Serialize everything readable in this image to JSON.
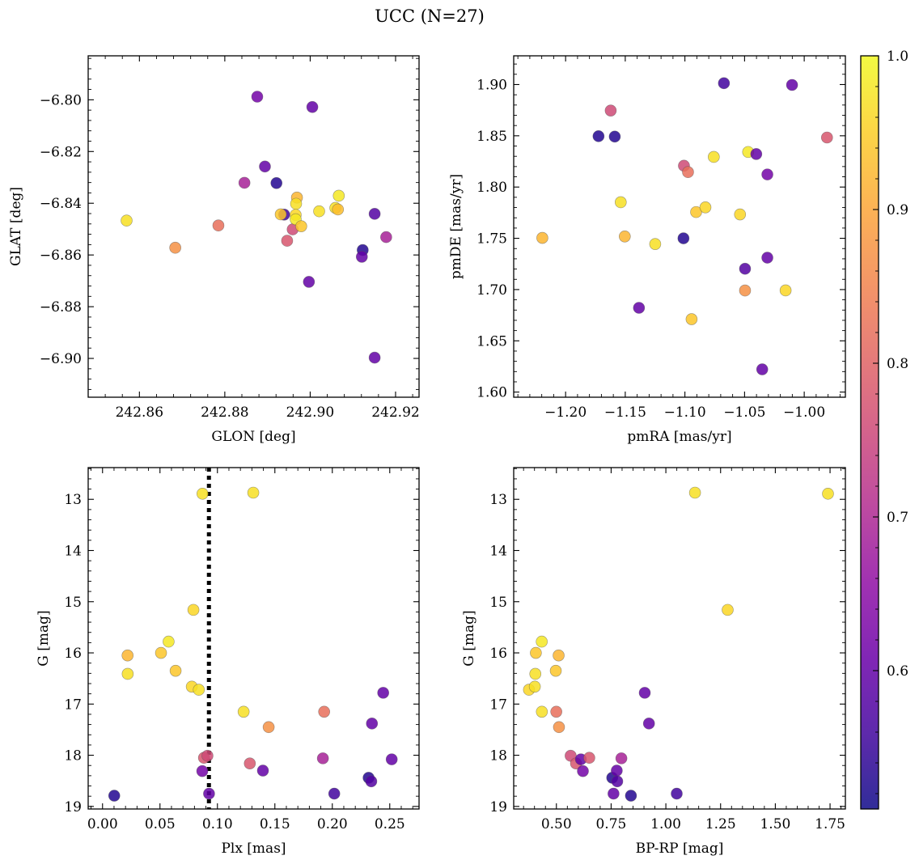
{
  "figure": {
    "title": "UCC (N=27)",
    "colormap": "plasma",
    "colorbar": {
      "range": [
        0.51,
        1.0
      ],
      "ticks": [
        "0.6",
        "0.7",
        "0.8",
        "0.9",
        "1.0"
      ],
      "tick_values": [
        0.6,
        0.7,
        0.8,
        0.9,
        1.0
      ]
    }
  },
  "chart_data": [
    {
      "type": "scatter",
      "xlabel": "GLON [deg]",
      "ylabel": "GLAT [deg]",
      "xlim": [
        242.848,
        242.9255
      ],
      "ylim": [
        -6.915,
        -6.783
      ],
      "xticks": [
        242.86,
        242.88,
        242.9,
        242.92
      ],
      "xtick_labels": [
        "242.86",
        "242.88",
        "242.90",
        "242.92"
      ],
      "yticks": [
        -6.8,
        -6.82,
        -6.84,
        -6.86,
        -6.88,
        -6.9
      ],
      "ytick_labels": [
        "−6.80",
        "−6.82",
        "−6.84",
        "−6.86",
        "−6.88",
        "−6.90"
      ],
      "points": [
        {
          "x": 242.857,
          "y": -6.8467,
          "c": 0.97
        },
        {
          "x": 242.8684,
          "y": -6.8572,
          "c": 0.87
        },
        {
          "x": 242.8785,
          "y": -6.8486,
          "c": 0.82
        },
        {
          "x": 242.8876,
          "y": -6.7988,
          "c": 0.62
        },
        {
          "x": 242.8846,
          "y": -6.8321,
          "c": 0.69
        },
        {
          "x": 242.8894,
          "y": -6.8258,
          "c": 0.6
        },
        {
          "x": 242.8921,
          "y": -6.8322,
          "c": 0.53
        },
        {
          "x": 242.8939,
          "y": -6.8444,
          "c": 0.56
        },
        {
          "x": 242.8931,
          "y": -6.8443,
          "c": 0.94
        },
        {
          "x": 242.8946,
          "y": -6.8545,
          "c": 0.78
        },
        {
          "x": 242.8959,
          "y": -6.8501,
          "c": 0.76
        },
        {
          "x": 242.8969,
          "y": -6.8378,
          "c": 0.92
        },
        {
          "x": 242.8967,
          "y": -6.8402,
          "c": 0.97
        },
        {
          "x": 242.8966,
          "y": -6.8445,
          "c": 0.96
        },
        {
          "x": 242.8966,
          "y": -6.8462,
          "c": 0.98
        },
        {
          "x": 242.8979,
          "y": -6.8489,
          "c": 0.94
        },
        {
          "x": 242.8997,
          "y": -6.8704,
          "c": 0.6
        },
        {
          "x": 242.9005,
          "y": -6.8028,
          "c": 0.6
        },
        {
          "x": 242.9021,
          "y": -6.8431,
          "c": 0.97
        },
        {
          "x": 242.9059,
          "y": -6.8418,
          "c": 0.97
        },
        {
          "x": 242.9065,
          "y": -6.8424,
          "c": 0.93
        },
        {
          "x": 242.9067,
          "y": -6.8371,
          "c": 0.98
        },
        {
          "x": 242.9123,
          "y": -6.8581,
          "c": 0.53
        },
        {
          "x": 242.9121,
          "y": -6.8607,
          "c": 0.6
        },
        {
          "x": 242.9151,
          "y": -6.8441,
          "c": 0.58
        },
        {
          "x": 242.9151,
          "y": -6.8997,
          "c": 0.6
        },
        {
          "x": 242.9178,
          "y": -6.8531,
          "c": 0.69
        }
      ]
    },
    {
      "type": "scatter",
      "xlabel": "pmRA [mas/yr]",
      "ylabel": "pmDE [mas/yr]",
      "xlim": [
        -1.2435,
        -0.9655
      ],
      "ylim": [
        1.595,
        1.928
      ],
      "xticks": [
        -1.2,
        -1.15,
        -1.1,
        -1.05,
        -1.0
      ],
      "xtick_labels": [
        "−1.20",
        "−1.15",
        "−1.10",
        "−1.05",
        "−1.00"
      ],
      "yticks": [
        1.6,
        1.65,
        1.7,
        1.75,
        1.8,
        1.85,
        1.9
      ],
      "ytick_labels": [
        "1.60",
        "1.65",
        "1.70",
        "1.75",
        "1.80",
        "1.85",
        "1.90"
      ],
      "points": [
        {
          "x": -1.2195,
          "y": 1.7504,
          "c": 0.92
        },
        {
          "x": -1.1724,
          "y": 1.8496,
          "c": 0.53
        },
        {
          "x": -1.1622,
          "y": 1.8746,
          "c": 0.76
        },
        {
          "x": -1.1588,
          "y": 1.8492,
          "c": 0.53
        },
        {
          "x": -1.1538,
          "y": 1.7852,
          "c": 0.97
        },
        {
          "x": -1.1504,
          "y": 1.7518,
          "c": 0.92
        },
        {
          "x": -1.1385,
          "y": 1.6822,
          "c": 0.6
        },
        {
          "x": -1.1249,
          "y": 1.7444,
          "c": 0.97
        },
        {
          "x": -1.1012,
          "y": 1.75,
          "c": 0.53
        },
        {
          "x": -1.1008,
          "y": 1.8208,
          "c": 0.76
        },
        {
          "x": -1.0974,
          "y": 1.8146,
          "c": 0.82
        },
        {
          "x": -1.0944,
          "y": 1.6711,
          "c": 0.94
        },
        {
          "x": -1.0906,
          "y": 1.7756,
          "c": 0.94
        },
        {
          "x": -1.0828,
          "y": 1.7802,
          "c": 0.96
        },
        {
          "x": -1.0758,
          "y": 1.8294,
          "c": 0.97
        },
        {
          "x": -1.0673,
          "y": 1.9013,
          "c": 0.56
        },
        {
          "x": -1.0538,
          "y": 1.7733,
          "c": 0.96
        },
        {
          "x": -1.0496,
          "y": 1.7203,
          "c": 0.58
        },
        {
          "x": -1.0496,
          "y": 1.6991,
          "c": 0.87
        },
        {
          "x": -1.047,
          "y": 1.8342,
          "c": 0.98
        },
        {
          "x": -1.0402,
          "y": 1.8322,
          "c": 0.6
        },
        {
          "x": -1.0352,
          "y": 1.6222,
          "c": 0.6
        },
        {
          "x": -1.0309,
          "y": 1.8123,
          "c": 0.62
        },
        {
          "x": -1.0309,
          "y": 1.7311,
          "c": 0.6
        },
        {
          "x": -1.0156,
          "y": 1.6992,
          "c": 0.96
        },
        {
          "x": -1.0102,
          "y": 1.8996,
          "c": 0.6
        },
        {
          "x": -0.9809,
          "y": 1.8483,
          "c": 0.78
        }
      ]
    },
    {
      "type": "scatter",
      "xlabel": "Plx [mas]",
      "ylabel": "G [mag]",
      "xlim": [
        -0.0125,
        0.2755
      ],
      "ylim": [
        19.05,
        12.38
      ],
      "y_inverted": true,
      "xticks": [
        0.0,
        0.05,
        0.1,
        0.15,
        0.2,
        0.25
      ],
      "xtick_labels": [
        "0.00",
        "0.05",
        "0.10",
        "0.15",
        "0.20",
        "0.25"
      ],
      "yticks": [
        13,
        14,
        15,
        16,
        17,
        18,
        19
      ],
      "ytick_labels": [
        "13",
        "14",
        "15",
        "16",
        "17",
        "18",
        "19"
      ],
      "vline": {
        "x": 0.0926,
        "style": "dotted"
      },
      "points": [
        {
          "x": 0.0102,
          "y": 18.79,
          "c": 0.53
        },
        {
          "x": 0.0218,
          "y": 16.05,
          "c": 0.92
        },
        {
          "x": 0.0219,
          "y": 16.41,
          "c": 0.97
        },
        {
          "x": 0.0509,
          "y": 16.0,
          "c": 0.94
        },
        {
          "x": 0.0575,
          "y": 15.78,
          "c": 0.98
        },
        {
          "x": 0.0636,
          "y": 16.35,
          "c": 0.94
        },
        {
          "x": 0.0777,
          "y": 16.66,
          "c": 0.96
        },
        {
          "x": 0.0791,
          "y": 15.16,
          "c": 0.96
        },
        {
          "x": 0.0838,
          "y": 16.72,
          "c": 0.97
        },
        {
          "x": 0.087,
          "y": 12.89,
          "c": 0.97
        },
        {
          "x": 0.0868,
          "y": 18.31,
          "c": 0.62
        },
        {
          "x": 0.0883,
          "y": 18.05,
          "c": 0.78
        },
        {
          "x": 0.0913,
          "y": 18.01,
          "c": 0.76
        },
        {
          "x": 0.0927,
          "y": 18.75,
          "c": 0.6
        },
        {
          "x": 0.1228,
          "y": 17.15,
          "c": 0.97
        },
        {
          "x": 0.1282,
          "y": 18.16,
          "c": 0.78
        },
        {
          "x": 0.1312,
          "y": 12.87,
          "c": 0.97
        },
        {
          "x": 0.1396,
          "y": 18.3,
          "c": 0.6
        },
        {
          "x": 0.1446,
          "y": 17.45,
          "c": 0.87
        },
        {
          "x": 0.1918,
          "y": 18.06,
          "c": 0.69
        },
        {
          "x": 0.1929,
          "y": 17.15,
          "c": 0.82
        },
        {
          "x": 0.2017,
          "y": 18.75,
          "c": 0.56
        },
        {
          "x": 0.2316,
          "y": 18.44,
          "c": 0.53
        },
        {
          "x": 0.2339,
          "y": 18.51,
          "c": 0.58
        },
        {
          "x": 0.2345,
          "y": 17.38,
          "c": 0.6
        },
        {
          "x": 0.2443,
          "y": 16.78,
          "c": 0.6
        },
        {
          "x": 0.2517,
          "y": 18.08,
          "c": 0.6
        }
      ]
    },
    {
      "type": "scatter",
      "xlabel": "BP-RP [mag]",
      "ylabel": "G [mag]",
      "xlim": [
        0.305,
        1.82
      ],
      "ylim": [
        19.05,
        12.38
      ],
      "y_inverted": true,
      "xticks": [
        0.5,
        0.75,
        1.0,
        1.25,
        1.5,
        1.75
      ],
      "xtick_labels": [
        "0.50",
        "0.75",
        "1.00",
        "1.25",
        "1.50",
        "1.75"
      ],
      "yticks": [
        13,
        14,
        15,
        16,
        17,
        18,
        19
      ],
      "ytick_labels": [
        "13",
        "14",
        "15",
        "16",
        "17",
        "18",
        "19"
      ],
      "points": [
        {
          "x": 0.3748,
          "y": 16.72,
          "c": 0.96
        },
        {
          "x": 0.4015,
          "y": 16.66,
          "c": 0.97
        },
        {
          "x": 0.4038,
          "y": 16.41,
          "c": 0.97
        },
        {
          "x": 0.4062,
          "y": 16.0,
          "c": 0.94
        },
        {
          "x": 0.4331,
          "y": 15.78,
          "c": 0.98
        },
        {
          "x": 0.4336,
          "y": 17.15,
          "c": 0.97
        },
        {
          "x": 0.4972,
          "y": 16.35,
          "c": 0.94
        },
        {
          "x": 0.4996,
          "y": 17.15,
          "c": 0.82
        },
        {
          "x": 0.5102,
          "y": 16.05,
          "c": 0.92
        },
        {
          "x": 0.5118,
          "y": 17.45,
          "c": 0.87
        },
        {
          "x": 0.5651,
          "y": 18.01,
          "c": 0.76
        },
        {
          "x": 0.5896,
          "y": 18.16,
          "c": 0.78
        },
        {
          "x": 0.6119,
          "y": 18.08,
          "c": 0.6
        },
        {
          "x": 0.6211,
          "y": 18.31,
          "c": 0.62
        },
        {
          "x": 0.6502,
          "y": 18.05,
          "c": 0.78
        },
        {
          "x": 0.755,
          "y": 18.44,
          "c": 0.53
        },
        {
          "x": 0.7609,
          "y": 18.75,
          "c": 0.6
        },
        {
          "x": 0.7757,
          "y": 18.3,
          "c": 0.6
        },
        {
          "x": 0.7779,
          "y": 18.51,
          "c": 0.58
        },
        {
          "x": 0.7968,
          "y": 18.06,
          "c": 0.69
        },
        {
          "x": 0.8405,
          "y": 18.79,
          "c": 0.53
        },
        {
          "x": 0.9036,
          "y": 16.78,
          "c": 0.6
        },
        {
          "x": 0.9228,
          "y": 17.38,
          "c": 0.6
        },
        {
          "x": 1.0496,
          "y": 18.75,
          "c": 0.56
        },
        {
          "x": 1.1331,
          "y": 12.87,
          "c": 0.97
        },
        {
          "x": 1.2823,
          "y": 15.16,
          "c": 0.96
        },
        {
          "x": 1.7405,
          "y": 12.89,
          "c": 0.97
        }
      ]
    }
  ]
}
